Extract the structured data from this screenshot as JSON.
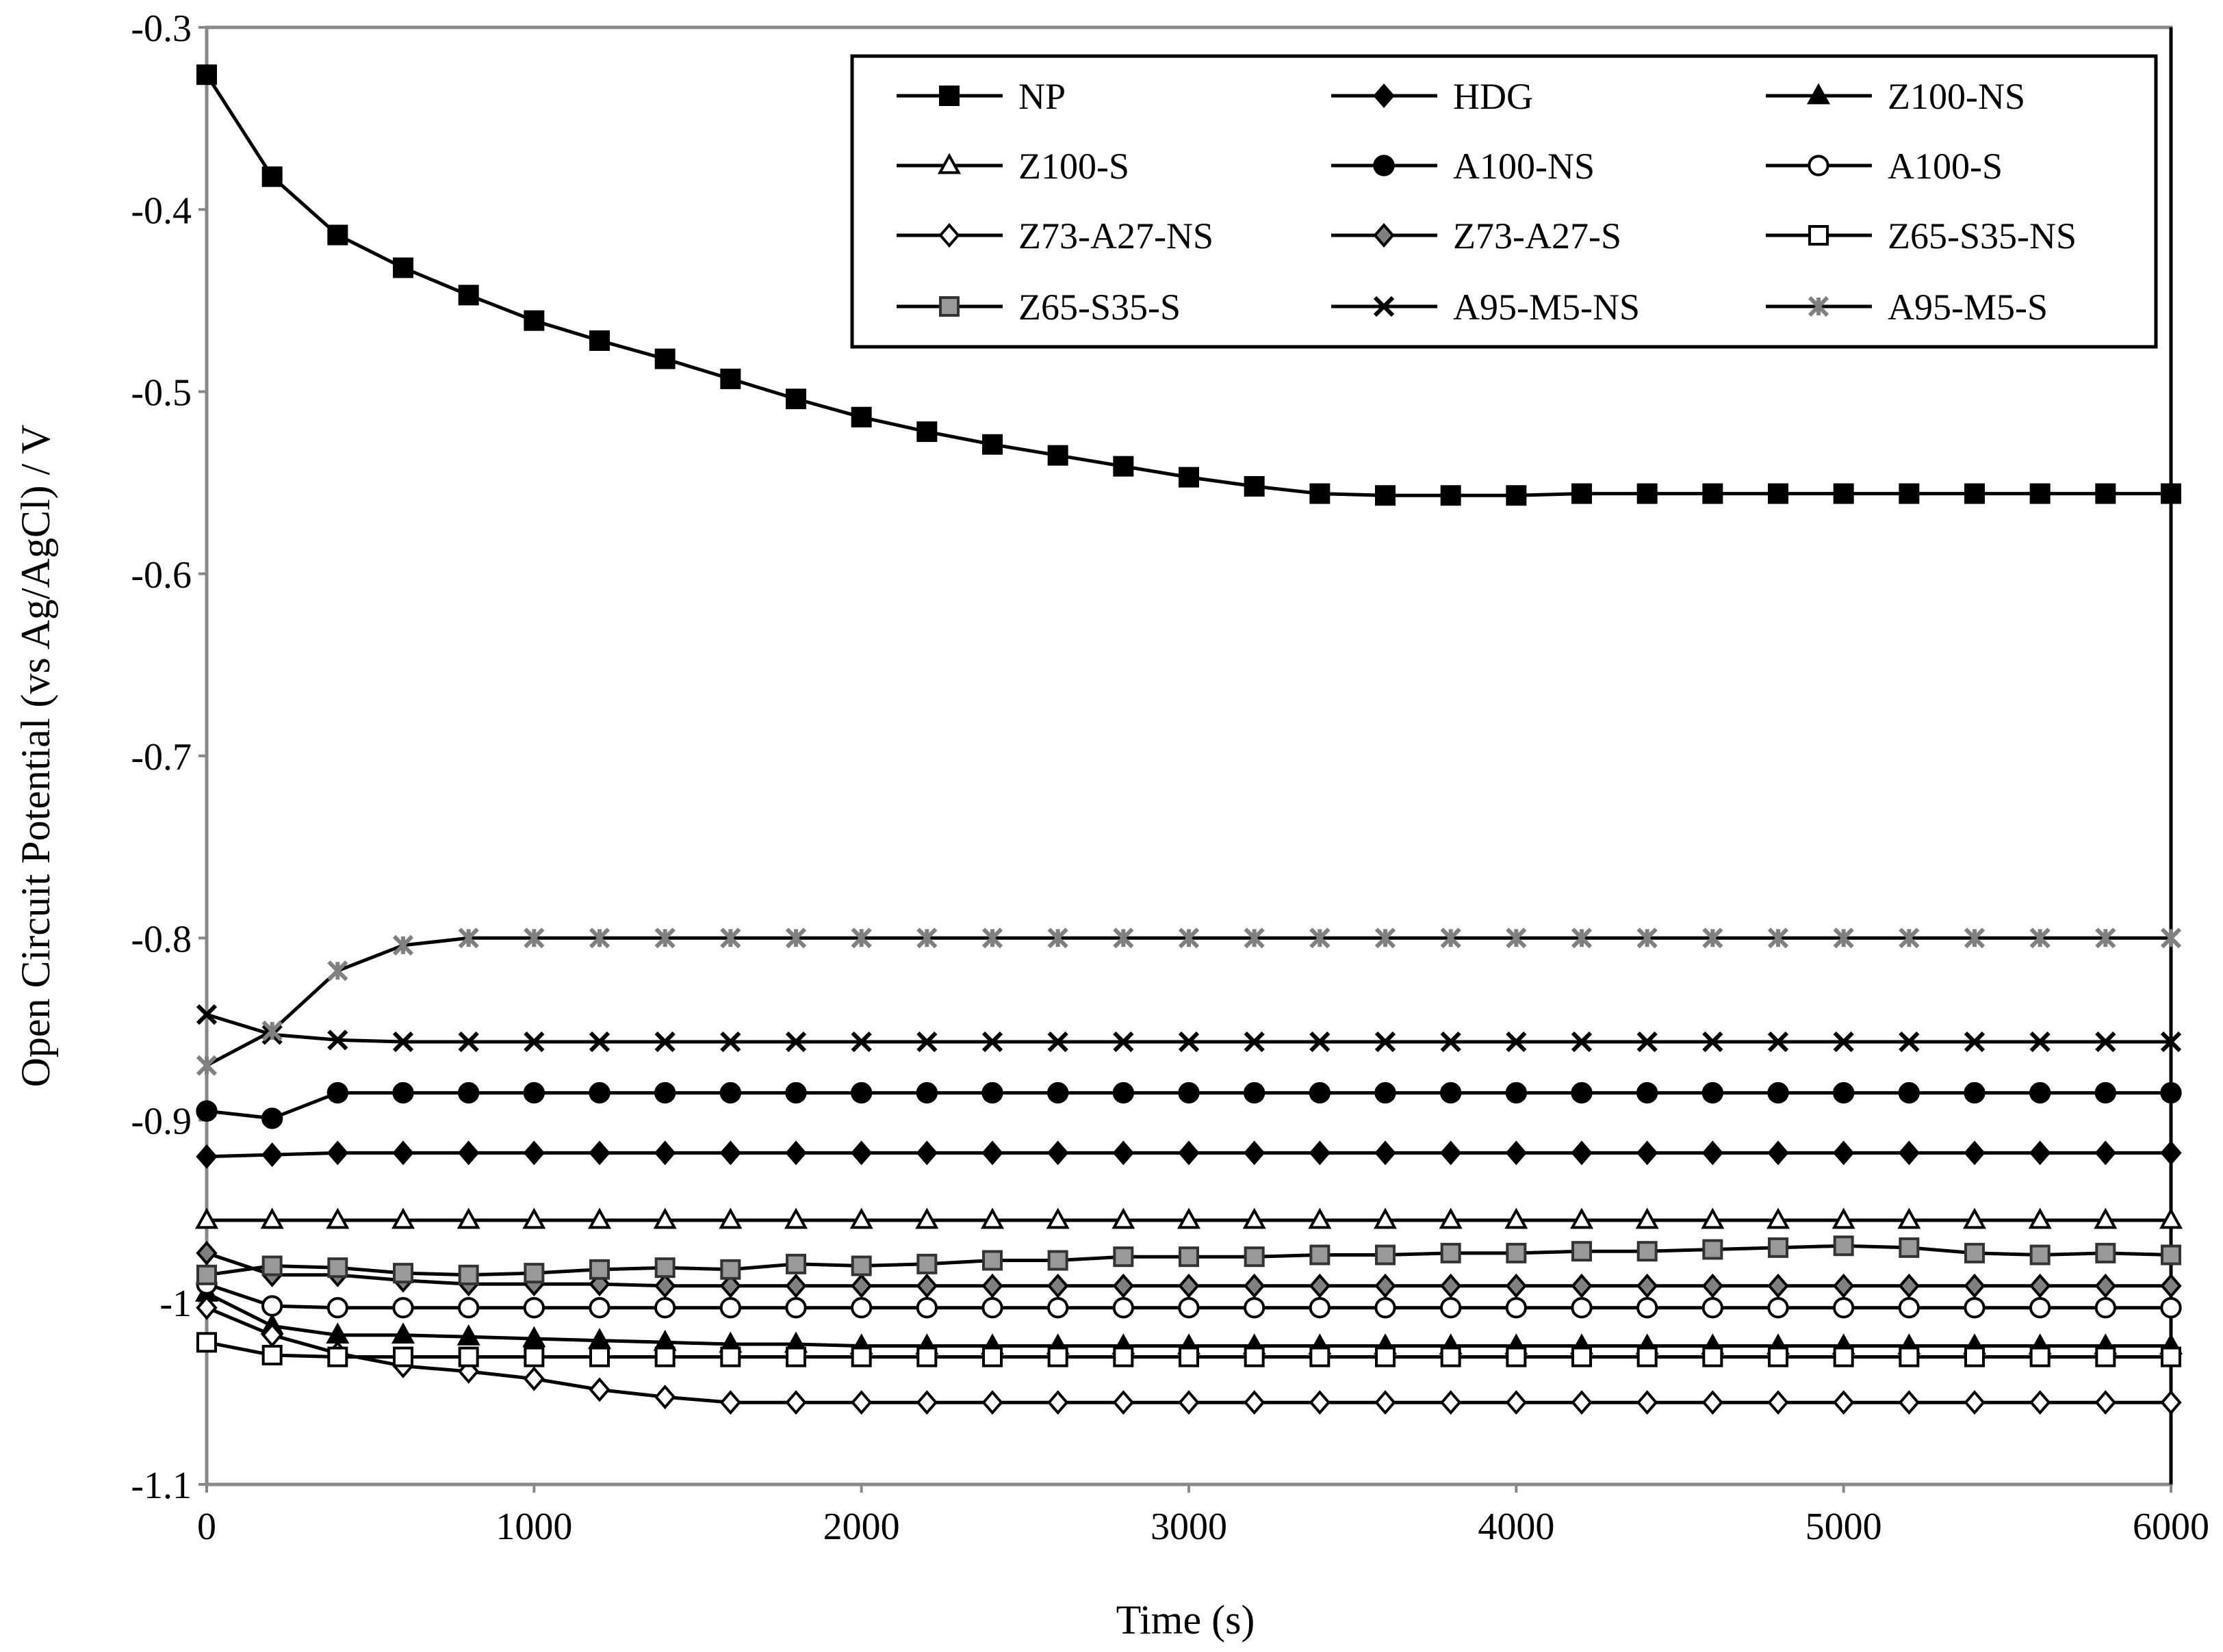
{
  "chart_data": {
    "type": "line",
    "title": "",
    "xlabel": "Time (s)",
    "ylabel": "Open Circuit Potential (vs Ag/AgCl) / V",
    "xlim": [
      0,
      6000
    ],
    "ylim": [
      -1.1,
      -0.3
    ],
    "xticks": [
      0,
      1000,
      2000,
      3000,
      4000,
      5000,
      6000
    ],
    "yticks": [
      -0.3,
      -0.4,
      -0.5,
      -0.6,
      -0.7,
      -0.8,
      -0.9,
      -1.0,
      -1.1
    ],
    "xtick_labels": [
      "0",
      "1000",
      "2000",
      "3000",
      "4000",
      "5000",
      "6000"
    ],
    "ytick_labels": [
      "-0.3",
      "-0.4",
      "-0.5",
      "-0.6",
      "-0.7",
      "-0.8",
      "-0.9",
      "-1",
      "-1.1"
    ],
    "grid": false,
    "legend_position": "top-right",
    "legend_columns": 3,
    "x": [
      0,
      200,
      400,
      600,
      800,
      1000,
      1200,
      1400,
      1600,
      1800,
      2000,
      2200,
      2400,
      2600,
      2800,
      3000,
      3200,
      3400,
      3600,
      3800,
      4000,
      4200,
      4400,
      4600,
      4800,
      5000,
      5200,
      5400,
      5600,
      5800,
      6000
    ],
    "series": [
      {
        "name": "NP",
        "marker": "square",
        "fill": "#000000",
        "stroke": "#000000",
        "values": [
          -0.326,
          -0.382,
          -0.414,
          -0.432,
          -0.447,
          -0.461,
          -0.472,
          -0.482,
          -0.493,
          -0.504,
          -0.514,
          -0.522,
          -0.529,
          -0.535,
          -0.541,
          -0.547,
          -0.552,
          -0.556,
          -0.557,
          -0.557,
          -0.557,
          -0.556,
          -0.556,
          -0.556,
          -0.556,
          -0.556,
          -0.556,
          -0.556,
          -0.556,
          -0.556,
          -0.556
        ]
      },
      {
        "name": "HDG",
        "marker": "diamond",
        "fill": "#000000",
        "stroke": "#000000",
        "values": [
          -0.92,
          -0.919,
          -0.918,
          -0.918,
          -0.918,
          -0.918,
          -0.918,
          -0.918,
          -0.918,
          -0.918,
          -0.918,
          -0.918,
          -0.918,
          -0.918,
          -0.918,
          -0.918,
          -0.918,
          -0.918,
          -0.918,
          -0.918,
          -0.918,
          -0.918,
          -0.918,
          -0.918,
          -0.918,
          -0.918,
          -0.918,
          -0.918,
          -0.918,
          -0.918,
          -0.918
        ]
      },
      {
        "name": "Z100-NS",
        "marker": "triangle",
        "fill": "#000000",
        "stroke": "#000000",
        "values": [
          -0.995,
          -1.013,
          -1.018,
          -1.018,
          -1.019,
          -1.02,
          -1.021,
          -1.022,
          -1.023,
          -1.023,
          -1.024,
          -1.024,
          -1.024,
          -1.024,
          -1.024,
          -1.024,
          -1.024,
          -1.024,
          -1.024,
          -1.024,
          -1.024,
          -1.024,
          -1.024,
          -1.024,
          -1.024,
          -1.024,
          -1.024,
          -1.024,
          -1.024,
          -1.024,
          -1.024
        ]
      },
      {
        "name": "Z100-S",
        "marker": "triangle",
        "fill": "#ffffff",
        "stroke": "#000000",
        "values": [
          -0.955,
          -0.955,
          -0.955,
          -0.955,
          -0.955,
          -0.955,
          -0.955,
          -0.955,
          -0.955,
          -0.955,
          -0.955,
          -0.955,
          -0.955,
          -0.955,
          -0.955,
          -0.955,
          -0.955,
          -0.955,
          -0.955,
          -0.955,
          -0.955,
          -0.955,
          -0.955,
          -0.955,
          -0.955,
          -0.955,
          -0.955,
          -0.955,
          -0.955,
          -0.955,
          -0.955
        ]
      },
      {
        "name": "A100-NS",
        "marker": "circle",
        "fill": "#000000",
        "stroke": "#000000",
        "values": [
          -0.895,
          -0.899,
          -0.885,
          -0.885,
          -0.885,
          -0.885,
          -0.885,
          -0.885,
          -0.885,
          -0.885,
          -0.885,
          -0.885,
          -0.885,
          -0.885,
          -0.885,
          -0.885,
          -0.885,
          -0.885,
          -0.885,
          -0.885,
          -0.885,
          -0.885,
          -0.885,
          -0.885,
          -0.885,
          -0.885,
          -0.885,
          -0.885,
          -0.885,
          -0.885,
          -0.885
        ]
      },
      {
        "name": "A100-S",
        "marker": "circle",
        "fill": "#ffffff",
        "stroke": "#000000",
        "values": [
          -0.99,
          -1.002,
          -1.003,
          -1.003,
          -1.003,
          -1.003,
          -1.003,
          -1.003,
          -1.003,
          -1.003,
          -1.003,
          -1.003,
          -1.003,
          -1.003,
          -1.003,
          -1.003,
          -1.003,
          -1.003,
          -1.003,
          -1.003,
          -1.003,
          -1.003,
          -1.003,
          -1.003,
          -1.003,
          -1.003,
          -1.003,
          -1.003,
          -1.003,
          -1.003,
          -1.003
        ]
      },
      {
        "name": "Z73-A27-NS",
        "marker": "diamond",
        "fill": "#ffffff",
        "stroke": "#000000",
        "values": [
          -1.003,
          -1.018,
          -1.028,
          -1.035,
          -1.038,
          -1.042,
          -1.048,
          -1.052,
          -1.055,
          -1.055,
          -1.055,
          -1.055,
          -1.055,
          -1.055,
          -1.055,
          -1.055,
          -1.055,
          -1.055,
          -1.055,
          -1.055,
          -1.055,
          -1.055,
          -1.055,
          -1.055,
          -1.055,
          -1.055,
          -1.055,
          -1.055,
          -1.055,
          -1.055,
          -1.055
        ]
      },
      {
        "name": "Z73-A27-S",
        "marker": "diamond",
        "fill": "#808080",
        "stroke": "#000000",
        "values": [
          -0.973,
          -0.985,
          -0.985,
          -0.988,
          -0.99,
          -0.99,
          -0.99,
          -0.991,
          -0.991,
          -0.991,
          -0.991,
          -0.991,
          -0.991,
          -0.991,
          -0.991,
          -0.991,
          -0.991,
          -0.991,
          -0.991,
          -0.991,
          -0.991,
          -0.991,
          -0.991,
          -0.991,
          -0.991,
          -0.991,
          -0.991,
          -0.991,
          -0.991,
          -0.991,
          -0.991
        ]
      },
      {
        "name": "Z65-S35-NS",
        "marker": "square",
        "fill": "#ffffff",
        "stroke": "#000000",
        "values": [
          -1.022,
          -1.029,
          -1.03,
          -1.03,
          -1.03,
          -1.03,
          -1.03,
          -1.03,
          -1.03,
          -1.03,
          -1.03,
          -1.03,
          -1.03,
          -1.03,
          -1.03,
          -1.03,
          -1.03,
          -1.03,
          -1.03,
          -1.03,
          -1.03,
          -1.03,
          -1.03,
          -1.03,
          -1.03,
          -1.03,
          -1.03,
          -1.03,
          -1.03,
          -1.03,
          -1.03
        ]
      },
      {
        "name": "Z65-S35-S",
        "marker": "square",
        "fill": "#999999",
        "stroke": "#333333",
        "values": [
          -0.985,
          -0.98,
          -0.981,
          -0.984,
          -0.985,
          -0.984,
          -0.982,
          -0.981,
          -0.982,
          -0.979,
          -0.98,
          -0.979,
          -0.977,
          -0.977,
          -0.975,
          -0.975,
          -0.975,
          -0.974,
          -0.974,
          -0.973,
          -0.973,
          -0.972,
          -0.972,
          -0.971,
          -0.97,
          -0.969,
          -0.97,
          -0.973,
          -0.974,
          -0.973,
          -0.974
        ]
      },
      {
        "name": "A95-M5-NS",
        "marker": "x",
        "fill": "#000000",
        "stroke": "#000000",
        "values": [
          -0.842,
          -0.853,
          -0.856,
          -0.857,
          -0.857,
          -0.857,
          -0.857,
          -0.857,
          -0.857,
          -0.857,
          -0.857,
          -0.857,
          -0.857,
          -0.857,
          -0.857,
          -0.857,
          -0.857,
          -0.857,
          -0.857,
          -0.857,
          -0.857,
          -0.857,
          -0.857,
          -0.857,
          -0.857,
          -0.857,
          -0.857,
          -0.857,
          -0.857,
          -0.857,
          -0.857
        ]
      },
      {
        "name": "A95-M5-S",
        "marker": "asterisk",
        "fill": "#808080",
        "stroke": "#808080",
        "values": [
          -0.87,
          -0.851,
          -0.818,
          -0.804,
          -0.8,
          -0.8,
          -0.8,
          -0.8,
          -0.8,
          -0.8,
          -0.8,
          -0.8,
          -0.8,
          -0.8,
          -0.8,
          -0.8,
          -0.8,
          -0.8,
          -0.8,
          -0.8,
          -0.8,
          -0.8,
          -0.8,
          -0.8,
          -0.8,
          -0.8,
          -0.8,
          -0.8,
          -0.8,
          -0.8,
          -0.8
        ]
      }
    ]
  }
}
